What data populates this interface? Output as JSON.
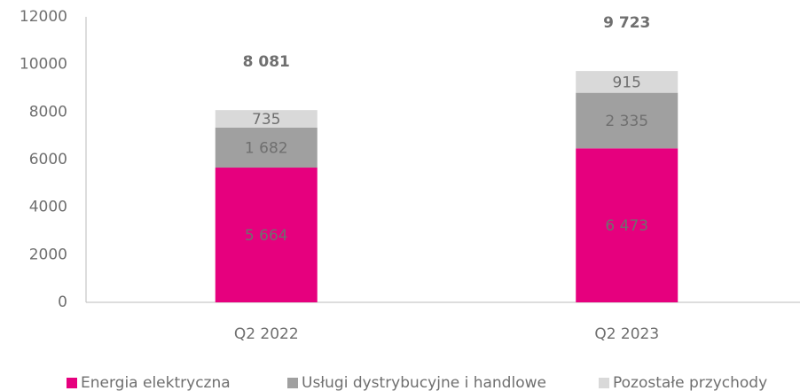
{
  "chart_data": {
    "type": "stacked_bar",
    "categories": [
      "Q2 2022",
      "Q2 2023"
    ],
    "series": [
      {
        "name": "Energia elektryczna",
        "color": "#e6007e",
        "values": [
          5664,
          6473
        ],
        "value_labels": [
          "5 664",
          "6 473"
        ]
      },
      {
        "name": "Usługi dystrybucyjne i handlowe",
        "color": "#a0a0a0",
        "values": [
          1682,
          2335
        ],
        "value_labels": [
          "1 682",
          "2 335"
        ]
      },
      {
        "name": "Pozostałe przychody",
        "color": "#d9d9d9",
        "values": [
          735,
          915
        ],
        "value_labels": [
          "735",
          "915"
        ]
      }
    ],
    "totals": [
      8081,
      9723
    ],
    "total_labels": [
      "8 081",
      "9 723"
    ],
    "ylim": [
      0,
      12000
    ],
    "yticks": [
      0,
      2000,
      4000,
      6000,
      8000,
      10000,
      12000
    ],
    "grid": false,
    "legend": "bottom"
  }
}
